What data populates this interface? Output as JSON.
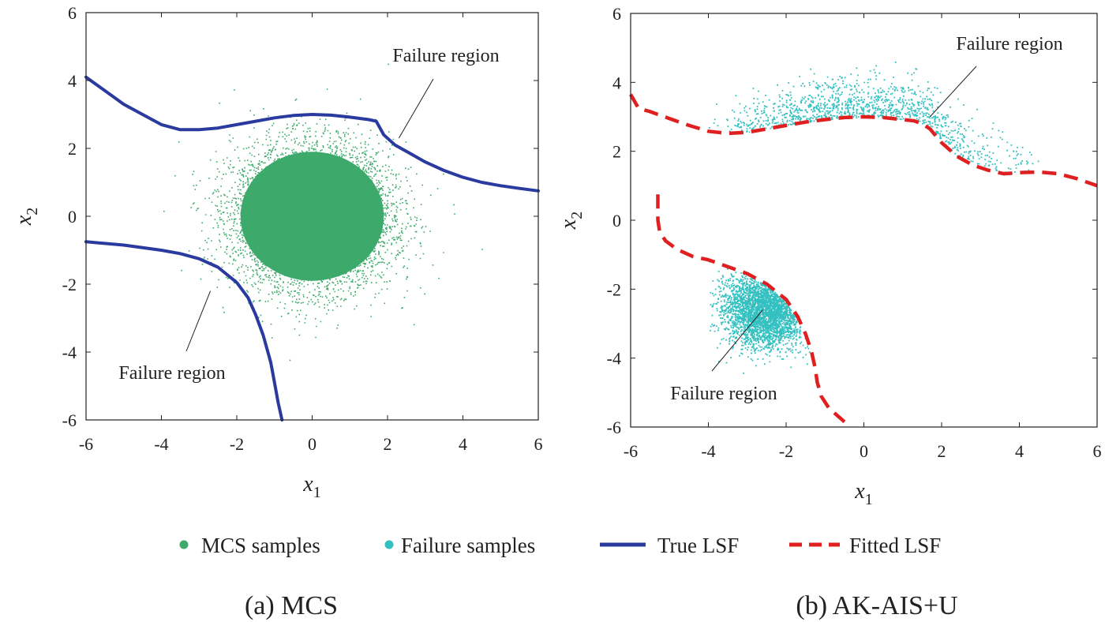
{
  "legend": {
    "items": [
      {
        "label": "MCS samples",
        "kind": "dot",
        "color": "#3daa6c"
      },
      {
        "label": "Failure samples",
        "kind": "dot",
        "color": "#33c0c0"
      },
      {
        "label": "True LSF",
        "kind": "line",
        "color": "#2b3a9f"
      },
      {
        "label": "Fitted LSF",
        "kind": "dashed",
        "color": "#e02020"
      }
    ]
  },
  "colors": {
    "mcs": "#3daa6c",
    "failure": "#33c0c0",
    "true_lsf": "#2b3a9f",
    "fitted_lsf": "#e02020"
  },
  "chart_data": [
    {
      "type": "scatter",
      "panel": "a",
      "caption": "(a) MCS",
      "xlabel": "x",
      "xlabel_sub": "1",
      "ylabel": "x",
      "ylabel_sub": "2",
      "xlim": [
        -6,
        6
      ],
      "ylim": [
        -6,
        6
      ],
      "xticks": [
        -6,
        -4,
        -2,
        0,
        2,
        4,
        6
      ],
      "yticks": [
        -6,
        -4,
        -2,
        0,
        2,
        4,
        6
      ],
      "annotations": [
        {
          "text": "Failure region",
          "point": [
            2.3,
            2.3
          ]
        },
        {
          "text": "Failure region",
          "point": [
            -2.7,
            -2.2
          ]
        }
      ],
      "samples": {
        "name": "MCS samples",
        "distribution": "standard normal",
        "center": [
          0,
          0
        ],
        "std": 1.0
      },
      "series": [
        {
          "name": "True LSF",
          "style": "solid",
          "x": [
            -6.0,
            -5.5,
            -5.0,
            -4.5,
            -4.0,
            -3.5,
            -3.0,
            -2.5,
            -2.0,
            -1.5,
            -1.0,
            -0.5,
            0.0,
            0.5,
            1.0,
            1.5,
            1.7,
            1.9,
            2.2,
            2.6,
            3.0,
            3.5,
            4.0,
            4.5,
            5.0,
            5.5,
            6.0
          ],
          "y": [
            4.1,
            3.7,
            3.3,
            3.0,
            2.7,
            2.55,
            2.55,
            2.6,
            2.7,
            2.8,
            2.9,
            2.97,
            3.0,
            2.98,
            2.92,
            2.85,
            2.8,
            2.4,
            2.1,
            1.85,
            1.6,
            1.35,
            1.15,
            1.0,
            0.9,
            0.82,
            0.75
          ]
        },
        {
          "name": "True LSF",
          "style": "solid",
          "x": [
            -6.0,
            -5.0,
            -4.0,
            -3.5,
            -3.0,
            -2.5,
            -2.0,
            -1.7,
            -1.5,
            -1.3,
            -1.1,
            -1.0,
            -0.9,
            -0.8
          ],
          "y": [
            -0.75,
            -0.85,
            -1.0,
            -1.1,
            -1.25,
            -1.5,
            -1.95,
            -2.4,
            -2.9,
            -3.5,
            -4.3,
            -4.9,
            -5.5,
            -6.0
          ]
        }
      ]
    },
    {
      "type": "scatter",
      "panel": "b",
      "caption": "(b) AK-AIS+U",
      "xlabel": "x",
      "xlabel_sub": "1",
      "ylabel": "x",
      "ylabel_sub": "2",
      "xlim": [
        -6,
        6
      ],
      "ylim": [
        -6,
        6
      ],
      "xticks": [
        -6,
        -4,
        -2,
        0,
        2,
        4,
        6
      ],
      "yticks": [
        -6,
        -4,
        -2,
        0,
        2,
        4,
        6
      ],
      "annotations": [
        {
          "text": "Failure region",
          "point": [
            1.7,
            3.0
          ]
        },
        {
          "text": "Failure region",
          "point": [
            -2.6,
            -2.6
          ]
        }
      ],
      "samples": {
        "name": "Failure samples",
        "regions": [
          "upper band above fitted LSF",
          "lower-left cluster"
        ]
      },
      "series": [
        {
          "name": "Fitted LSF",
          "style": "dashed",
          "x": [
            -6.0,
            -5.8,
            -5.5,
            -5.0,
            -4.5,
            -4.0,
            -3.5,
            -3.0,
            -2.5,
            -2.0,
            -1.5,
            -1.0,
            -0.5,
            0.0,
            0.5,
            1.0,
            1.3,
            1.5,
            1.7,
            2.0,
            2.4,
            2.8,
            3.2,
            3.6,
            4.0,
            4.5,
            5.0,
            5.5,
            6.0
          ],
          "y": [
            3.65,
            3.25,
            3.15,
            2.95,
            2.75,
            2.58,
            2.52,
            2.55,
            2.65,
            2.75,
            2.85,
            2.92,
            2.98,
            3.0,
            2.98,
            2.92,
            2.88,
            2.8,
            2.65,
            2.25,
            1.85,
            1.6,
            1.45,
            1.35,
            1.38,
            1.4,
            1.35,
            1.2,
            1.0
          ]
        },
        {
          "name": "Fitted LSF",
          "style": "dashed",
          "x": [
            -5.3,
            -5.3,
            -5.25,
            -5.1,
            -4.8,
            -4.4,
            -4.0,
            -3.5,
            -3.0,
            -2.5,
            -2.0,
            -1.7,
            -1.5,
            -1.35,
            -1.25,
            -1.2,
            -1.1,
            -0.9,
            -0.6,
            -0.5
          ],
          "y": [
            0.75,
            0.0,
            -0.35,
            -0.6,
            -0.85,
            -1.05,
            -1.15,
            -1.35,
            -1.55,
            -1.85,
            -2.3,
            -2.8,
            -3.3,
            -3.8,
            -4.3,
            -4.7,
            -5.1,
            -5.45,
            -5.75,
            -5.85
          ]
        }
      ]
    }
  ]
}
